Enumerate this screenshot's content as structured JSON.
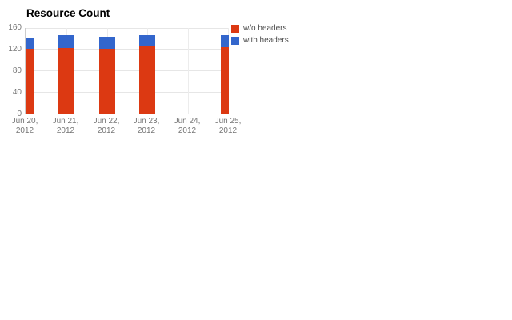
{
  "page": {
    "background": "#ffffff"
  },
  "chart_data": {
    "type": "bar",
    "stacked": true,
    "title": "Resource Count",
    "categories": [
      [
        "Jun 20,",
        "2012"
      ],
      [
        "Jun 21,",
        "2012"
      ],
      [
        "Jun 22,",
        "2012"
      ],
      [
        "Jun 23,",
        "2012"
      ],
      [
        "Jun 24,",
        "2012"
      ],
      [
        "Jun 25,",
        "2012"
      ]
    ],
    "series": [
      {
        "name": "w/o headers",
        "color": "#dc3912",
        "values": [
          121,
          123,
          122,
          126,
          0,
          124
        ]
      },
      {
        "name": "with headers",
        "color": "#3366cc",
        "values": [
          21,
          23,
          22,
          21,
          0,
          22
        ]
      }
    ],
    "totals": [
      142,
      146,
      144,
      147,
      0,
      146
    ],
    "y_ticks": [
      0,
      40,
      80,
      120,
      160
    ],
    "ylim": [
      0,
      160
    ],
    "xlabel": "",
    "ylabel": "",
    "grid": true,
    "legend_position": "top-right",
    "colors": {
      "gridline": "#e6e6e6",
      "axis_text": "#757575",
      "legend_text": "#4d4d4d",
      "title_text": "#000000"
    }
  }
}
